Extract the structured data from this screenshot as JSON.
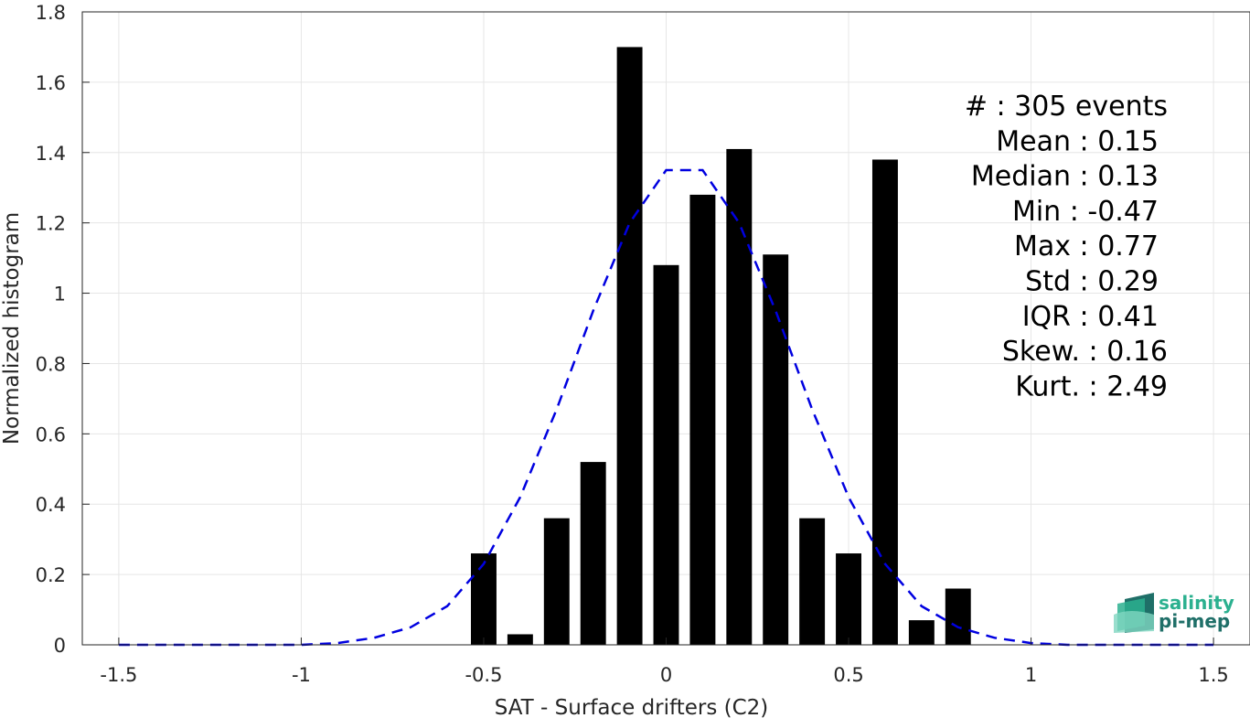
{
  "chart_data": {
    "type": "bar",
    "xlabel": "SAT - Surface drifters (C2)",
    "ylabel": "Normalized histogram",
    "xlim": [
      -1.6,
      1.6
    ],
    "ylim": [
      0,
      1.8
    ],
    "xticks": [
      -1.5,
      -1,
      -0.5,
      0,
      0.5,
      1,
      1.5
    ],
    "xtick_labels": [
      "-1.5",
      "-1",
      "-0.5",
      "0",
      "0.5",
      "1",
      "1.5"
    ],
    "yticks": [
      0,
      0.2,
      0.4,
      0.6,
      0.8,
      1,
      1.2,
      1.4,
      1.6,
      1.8
    ],
    "ytick_labels": [
      "0",
      "0.2",
      "0.4",
      "0.6",
      "0.8",
      "1",
      "1.2",
      "1.4",
      "1.6",
      "1.8"
    ],
    "grid": true,
    "bin_width": 0.1,
    "bars": {
      "x": [
        -0.5,
        -0.4,
        -0.3,
        -0.2,
        -0.1,
        0.0,
        0.1,
        0.2,
        0.3,
        0.4,
        0.5,
        0.6,
        0.7,
        0.8
      ],
      "values": [
        0.26,
        0.03,
        0.36,
        0.52,
        1.7,
        1.08,
        1.28,
        1.41,
        1.11,
        0.36,
        0.26,
        1.38,
        0.07,
        0.16
      ],
      "color": "#000000"
    },
    "fit_curve": {
      "style": "dashed",
      "color": "#0000e0",
      "x": [
        -1.5,
        -1.4,
        -1.3,
        -1.2,
        -1.1,
        -1.0,
        -0.9,
        -0.8,
        -0.7,
        -0.6,
        -0.5,
        -0.4,
        -0.3,
        -0.2,
        -0.1,
        0.0,
        0.1,
        0.2,
        0.3,
        0.4,
        0.5,
        0.6,
        0.7,
        0.8,
        0.9,
        1.0,
        1.1,
        1.2,
        1.3,
        1.4,
        1.5
      ],
      "y": [
        0.0,
        0.0,
        0.0,
        0.0,
        0.0,
        0.0,
        0.005,
        0.02,
        0.05,
        0.11,
        0.23,
        0.42,
        0.67,
        0.95,
        1.2,
        1.35,
        1.35,
        1.2,
        0.95,
        0.67,
        0.42,
        0.23,
        0.11,
        0.05,
        0.02,
        0.005,
        0.0,
        0.0,
        0.0,
        0.0,
        0.0
      ]
    },
    "stats": [
      "#  : 305 events",
      "Mean : 0.15",
      "Median : 0.13",
      "Min : -0.47",
      "Max : 0.77",
      "Std : 0.29",
      "IQR : 0.41",
      "Skew. : 0.16",
      "Kurt. : 2.49"
    ]
  },
  "logo": {
    "line1": "salinity",
    "line2": "pi-mep",
    "color_top": "#2bb08f",
    "color_bottom": "#1f6f68"
  }
}
